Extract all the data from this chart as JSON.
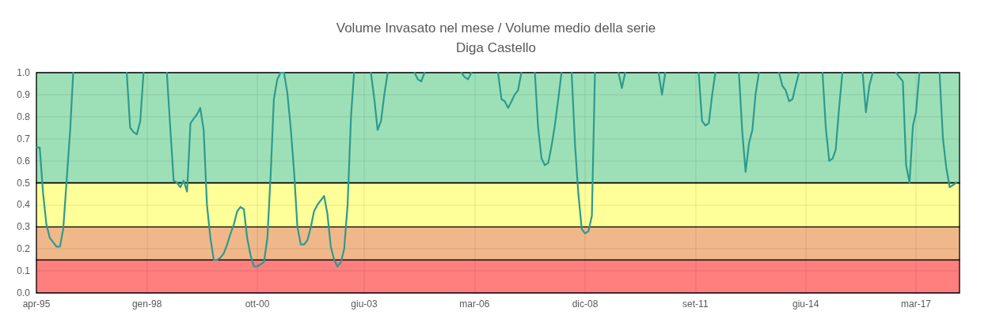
{
  "chart_data": {
    "type": "line",
    "title": "Volume Invasato nel mese / Volume medio della serie",
    "subtitle": "Diga Castello",
    "x": [
      "1995-04",
      "1995-05",
      "1995-06",
      "1995-07",
      "1995-08",
      "1995-09",
      "1995-10",
      "1995-11",
      "1995-12",
      "1996-01",
      "1996-02",
      "1996-03",
      "1996-04",
      "1997-07",
      "1997-08",
      "1997-09",
      "1997-10",
      "1997-11",
      "1997-12",
      "1998-01",
      "1998-07",
      "1998-08",
      "1998-09",
      "1998-10",
      "1998-11",
      "1998-12",
      "1999-01",
      "1999-02",
      "1999-03",
      "1999-04",
      "1999-05",
      "1999-06",
      "1999-07",
      "1999-08",
      "1999-09",
      "1999-10",
      "1999-11",
      "1999-12",
      "2000-01",
      "2000-02",
      "2000-03",
      "2000-04",
      "2000-05",
      "2000-06",
      "2000-07",
      "2000-08",
      "2000-09",
      "2000-10",
      "2000-11",
      "2000-12",
      "2001-01",
      "2001-02",
      "2001-03",
      "2001-04",
      "2001-05",
      "2001-06",
      "2001-07",
      "2001-08",
      "2001-09",
      "2001-10",
      "2001-11",
      "2001-12",
      "2002-01",
      "2002-02",
      "2002-03",
      "2002-04",
      "2002-05",
      "2002-06",
      "2002-07",
      "2002-08",
      "2002-09",
      "2002-10",
      "2002-11",
      "2002-12",
      "2003-01",
      "2003-02",
      "2003-03",
      "2003-04",
      "2003-08",
      "2003-09",
      "2003-10",
      "2003-11",
      "2003-12",
      "2004-01",
      "2004-02",
      "2004-09",
      "2004-10",
      "2004-11",
      "2004-12",
      "2005-01",
      "2005-11",
      "2005-12",
      "2006-01",
      "2006-02",
      "2006-03",
      "2006-10",
      "2006-11",
      "2006-12",
      "2007-01",
      "2007-02",
      "2007-03",
      "2007-04",
      "2007-05",
      "2007-06",
      "2007-09",
      "2007-10",
      "2007-11",
      "2007-12",
      "2008-01",
      "2008-02",
      "2008-03",
      "2008-04",
      "2008-05",
      "2008-06",
      "2008-08",
      "2008-09",
      "2008-10",
      "2008-11",
      "2008-12",
      "2009-01",
      "2009-02",
      "2009-03",
      "2009-04",
      "2009-10",
      "2009-11",
      "2009-12",
      "2010-01",
      "2010-10",
      "2010-11",
      "2010-12",
      "2011-01",
      "2011-10",
      "2011-11",
      "2011-12",
      "2012-01",
      "2012-02",
      "2012-03",
      "2012-04",
      "2012-10",
      "2012-11",
      "2012-12",
      "2013-01",
      "2013-02",
      "2013-03",
      "2013-04",
      "2013-05",
      "2013-10",
      "2013-11",
      "2013-12",
      "2014-01",
      "2014-02",
      "2014-03",
      "2014-04",
      "2014-05",
      "2014-11",
      "2014-12",
      "2015-01",
      "2015-02",
      "2015-03",
      "2015-04",
      "2015-05",
      "2015-06",
      "2015-11",
      "2015-12",
      "2016-01",
      "2016-02",
      "2016-03",
      "2016-09",
      "2016-10",
      "2016-11",
      "2016-12",
      "2017-01",
      "2017-02",
      "2017-03",
      "2017-04",
      "2017-05",
      "2017-10",
      "2017-11",
      "2017-12",
      "2018-01",
      "2018-02",
      "2018-03"
    ],
    "series": [
      {
        "color": "#2e9a8e",
        "values": [
          0.66,
          0.66,
          0.45,
          0.31,
          0.25,
          0.23,
          0.21,
          0.21,
          0.29,
          0.51,
          0.73,
          1.0,
          null,
          1.0,
          0.75,
          0.73,
          0.72,
          0.78,
          1.0,
          null,
          1.0,
          0.75,
          0.51,
          0.5,
          0.48,
          0.51,
          0.46,
          0.77,
          0.79,
          0.81,
          0.84,
          0.74,
          0.4,
          0.25,
          0.15,
          0.15,
          0.16,
          0.18,
          0.22,
          0.27,
          0.31,
          0.37,
          0.39,
          0.38,
          0.25,
          0.17,
          0.12,
          0.12,
          0.13,
          0.14,
          0.25,
          0.55,
          0.88,
          0.97,
          1.0,
          1.0,
          0.91,
          0.75,
          0.55,
          0.3,
          0.22,
          0.22,
          0.24,
          0.3,
          0.37,
          0.4,
          0.42,
          0.44,
          0.36,
          0.21,
          0.15,
          0.12,
          0.14,
          0.2,
          0.4,
          0.8,
          1.0,
          null,
          1.0,
          0.88,
          0.74,
          0.78,
          0.9,
          1.0,
          null,
          1.0,
          0.97,
          0.96,
          1.0,
          null,
          1.0,
          0.98,
          0.97,
          1.0,
          null,
          1.0,
          0.88,
          0.87,
          0.84,
          0.87,
          0.9,
          0.92,
          1.0,
          null,
          1.0,
          0.75,
          0.61,
          0.58,
          0.59,
          0.67,
          0.76,
          0.88,
          1.0,
          null,
          1.0,
          0.67,
          0.45,
          0.29,
          0.27,
          0.28,
          0.35,
          1.0,
          null,
          1.0,
          0.93,
          1.0,
          null,
          1.0,
          0.9,
          1.0,
          null,
          1.0,
          0.78,
          0.76,
          0.77,
          0.9,
          1.0,
          null,
          1.0,
          0.73,
          0.55,
          0.68,
          0.74,
          0.9,
          1.0,
          null,
          1.0,
          0.94,
          0.92,
          0.87,
          0.88,
          0.94,
          1.0,
          null,
          1.0,
          0.75,
          0.6,
          0.61,
          0.65,
          0.84,
          1.0,
          null,
          1.0,
          0.82,
          0.94,
          1.0,
          null,
          1.0,
          0.98,
          0.96,
          0.58,
          0.5,
          0.76,
          0.82,
          1.0,
          null,
          1.0,
          0.7,
          0.57,
          0.48,
          0.49,
          0.5
        ]
      }
    ],
    "xlim": [
      "1995-04",
      "2018-04"
    ],
    "xticks": [
      {
        "value": "1995-04",
        "label": "apr-95"
      },
      {
        "value": "1998-01",
        "label": "gen-98"
      },
      {
        "value": "2000-10",
        "label": "ott-00"
      },
      {
        "value": "2003-06",
        "label": "giu-03"
      },
      {
        "value": "2006-03",
        "label": "mar-06"
      },
      {
        "value": "2008-12",
        "label": "dic-08"
      },
      {
        "value": "2011-09",
        "label": "set-11"
      },
      {
        "value": "2014-06",
        "label": "giu-14"
      },
      {
        "value": "2017-03",
        "label": "mar-17"
      }
    ],
    "ylim": [
      0,
      1
    ],
    "yticks": [
      {
        "value": 0,
        "label": "0.0"
      },
      0.1,
      0.2,
      0.3,
      0.4,
      0.5,
      0.6,
      0.7,
      0.8,
      0.9,
      {
        "value": 1,
        "label": "1.0"
      }
    ],
    "bands": [
      {
        "axis": "y",
        "from": 0,
        "to": 0.15,
        "color": "#ff7f7f"
      },
      {
        "axis": "y",
        "from": 0.15,
        "to": 0.3,
        "color": "#f0b88a"
      },
      {
        "axis": "y",
        "from": 0.3,
        "to": 0.5,
        "color": "#ffff99"
      },
      {
        "axis": "y",
        "from": 0.5,
        "to": 1,
        "color": "#9de0b8"
      }
    ],
    "grid": true,
    "marker": "none",
    "line_style": "solid"
  }
}
